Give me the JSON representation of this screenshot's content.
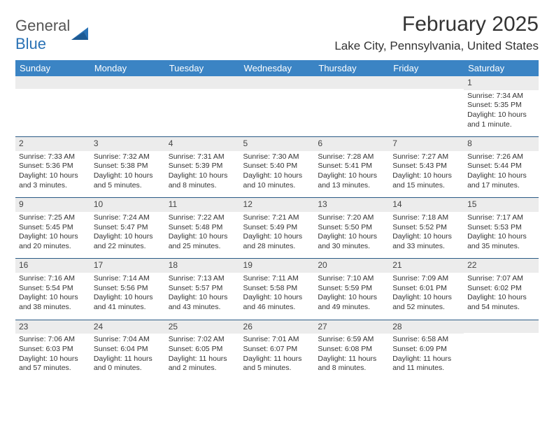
{
  "logo": {
    "text1": "General",
    "text2": "Blue"
  },
  "title": "February 2025",
  "location": "Lake City, Pennsylvania, United States",
  "colors": {
    "header_bg": "#3b84c4",
    "header_text": "#ffffff",
    "row_divider": "#2a5a85",
    "daynum_bg": "#ececec",
    "logo_accent": "#2a72b5"
  },
  "weekdays": [
    "Sunday",
    "Monday",
    "Tuesday",
    "Wednesday",
    "Thursday",
    "Friday",
    "Saturday"
  ],
  "weeks": [
    [
      null,
      null,
      null,
      null,
      null,
      null,
      {
        "n": "1",
        "sr": "Sunrise: 7:34 AM",
        "ss": "Sunset: 5:35 PM",
        "dl": "Daylight: 10 hours and 1 minute."
      }
    ],
    [
      {
        "n": "2",
        "sr": "Sunrise: 7:33 AM",
        "ss": "Sunset: 5:36 PM",
        "dl": "Daylight: 10 hours and 3 minutes."
      },
      {
        "n": "3",
        "sr": "Sunrise: 7:32 AM",
        "ss": "Sunset: 5:38 PM",
        "dl": "Daylight: 10 hours and 5 minutes."
      },
      {
        "n": "4",
        "sr": "Sunrise: 7:31 AM",
        "ss": "Sunset: 5:39 PM",
        "dl": "Daylight: 10 hours and 8 minutes."
      },
      {
        "n": "5",
        "sr": "Sunrise: 7:30 AM",
        "ss": "Sunset: 5:40 PM",
        "dl": "Daylight: 10 hours and 10 minutes."
      },
      {
        "n": "6",
        "sr": "Sunrise: 7:28 AM",
        "ss": "Sunset: 5:41 PM",
        "dl": "Daylight: 10 hours and 13 minutes."
      },
      {
        "n": "7",
        "sr": "Sunrise: 7:27 AM",
        "ss": "Sunset: 5:43 PM",
        "dl": "Daylight: 10 hours and 15 minutes."
      },
      {
        "n": "8",
        "sr": "Sunrise: 7:26 AM",
        "ss": "Sunset: 5:44 PM",
        "dl": "Daylight: 10 hours and 17 minutes."
      }
    ],
    [
      {
        "n": "9",
        "sr": "Sunrise: 7:25 AM",
        "ss": "Sunset: 5:45 PM",
        "dl": "Daylight: 10 hours and 20 minutes."
      },
      {
        "n": "10",
        "sr": "Sunrise: 7:24 AM",
        "ss": "Sunset: 5:47 PM",
        "dl": "Daylight: 10 hours and 22 minutes."
      },
      {
        "n": "11",
        "sr": "Sunrise: 7:22 AM",
        "ss": "Sunset: 5:48 PM",
        "dl": "Daylight: 10 hours and 25 minutes."
      },
      {
        "n": "12",
        "sr": "Sunrise: 7:21 AM",
        "ss": "Sunset: 5:49 PM",
        "dl": "Daylight: 10 hours and 28 minutes."
      },
      {
        "n": "13",
        "sr": "Sunrise: 7:20 AM",
        "ss": "Sunset: 5:50 PM",
        "dl": "Daylight: 10 hours and 30 minutes."
      },
      {
        "n": "14",
        "sr": "Sunrise: 7:18 AM",
        "ss": "Sunset: 5:52 PM",
        "dl": "Daylight: 10 hours and 33 minutes."
      },
      {
        "n": "15",
        "sr": "Sunrise: 7:17 AM",
        "ss": "Sunset: 5:53 PM",
        "dl": "Daylight: 10 hours and 35 minutes."
      }
    ],
    [
      {
        "n": "16",
        "sr": "Sunrise: 7:16 AM",
        "ss": "Sunset: 5:54 PM",
        "dl": "Daylight: 10 hours and 38 minutes."
      },
      {
        "n": "17",
        "sr": "Sunrise: 7:14 AM",
        "ss": "Sunset: 5:56 PM",
        "dl": "Daylight: 10 hours and 41 minutes."
      },
      {
        "n": "18",
        "sr": "Sunrise: 7:13 AM",
        "ss": "Sunset: 5:57 PM",
        "dl": "Daylight: 10 hours and 43 minutes."
      },
      {
        "n": "19",
        "sr": "Sunrise: 7:11 AM",
        "ss": "Sunset: 5:58 PM",
        "dl": "Daylight: 10 hours and 46 minutes."
      },
      {
        "n": "20",
        "sr": "Sunrise: 7:10 AM",
        "ss": "Sunset: 5:59 PM",
        "dl": "Daylight: 10 hours and 49 minutes."
      },
      {
        "n": "21",
        "sr": "Sunrise: 7:09 AM",
        "ss": "Sunset: 6:01 PM",
        "dl": "Daylight: 10 hours and 52 minutes."
      },
      {
        "n": "22",
        "sr": "Sunrise: 7:07 AM",
        "ss": "Sunset: 6:02 PM",
        "dl": "Daylight: 10 hours and 54 minutes."
      }
    ],
    [
      {
        "n": "23",
        "sr": "Sunrise: 7:06 AM",
        "ss": "Sunset: 6:03 PM",
        "dl": "Daylight: 10 hours and 57 minutes."
      },
      {
        "n": "24",
        "sr": "Sunrise: 7:04 AM",
        "ss": "Sunset: 6:04 PM",
        "dl": "Daylight: 11 hours and 0 minutes."
      },
      {
        "n": "25",
        "sr": "Sunrise: 7:02 AM",
        "ss": "Sunset: 6:05 PM",
        "dl": "Daylight: 11 hours and 2 minutes."
      },
      {
        "n": "26",
        "sr": "Sunrise: 7:01 AM",
        "ss": "Sunset: 6:07 PM",
        "dl": "Daylight: 11 hours and 5 minutes."
      },
      {
        "n": "27",
        "sr": "Sunrise: 6:59 AM",
        "ss": "Sunset: 6:08 PM",
        "dl": "Daylight: 11 hours and 8 minutes."
      },
      {
        "n": "28",
        "sr": "Sunrise: 6:58 AM",
        "ss": "Sunset: 6:09 PM",
        "dl": "Daylight: 11 hours and 11 minutes."
      },
      null
    ]
  ]
}
